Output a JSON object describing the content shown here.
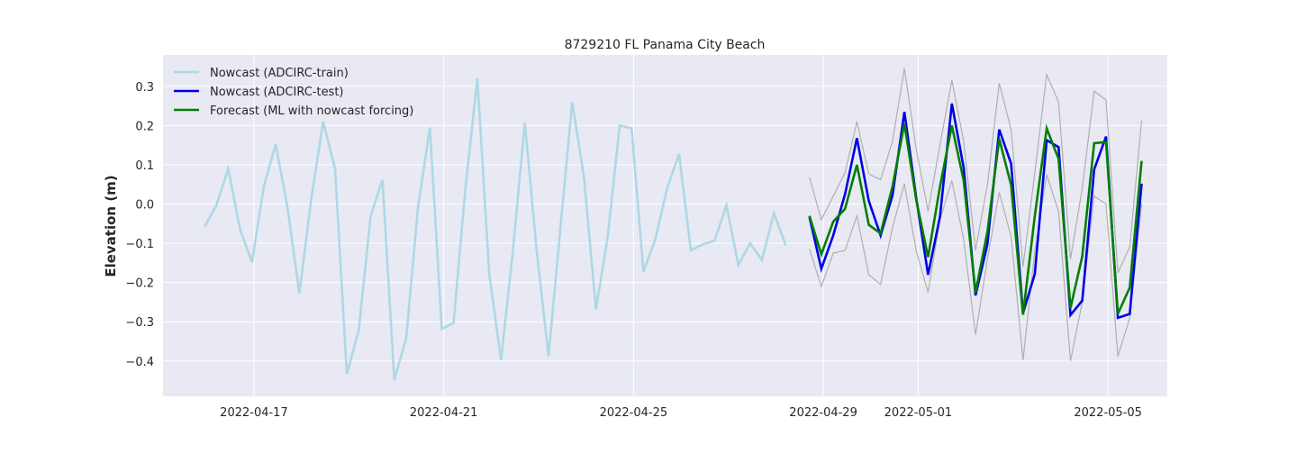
{
  "chart_data": {
    "type": "line",
    "title": "8729210 FL Panama City Beach",
    "xlabel": "",
    "ylabel": "Elevation (m)",
    "background": "#e8e9f2",
    "grid": true,
    "legend_position": "top-left",
    "xlim": [
      "2022-04-15 02:00",
      "2022-05-06 06:00"
    ],
    "ylim": [
      -0.49,
      0.38
    ],
    "x_ticks": [
      {
        "value": "2022-04-17",
        "label": "2022-04-17"
      },
      {
        "value": "2022-04-21",
        "label": "2022-04-21"
      },
      {
        "value": "2022-04-25",
        "label": "2022-04-25"
      },
      {
        "value": "2022-04-29",
        "label": "2022-04-29"
      },
      {
        "value": "2022-05-01",
        "label": "2022-05-01"
      },
      {
        "value": "2022-05-05",
        "label": "2022-05-05"
      }
    ],
    "y_ticks": [
      {
        "value": 0.3,
        "label": "0.3"
      },
      {
        "value": 0.2,
        "label": "0.2"
      },
      {
        "value": 0.1,
        "label": "0.1"
      },
      {
        "value": 0.0,
        "label": "0.0"
      },
      {
        "value": -0.1,
        "label": "−0.1"
      },
      {
        "value": -0.2,
        "label": "−0.2"
      },
      {
        "value": -0.3,
        "label": "−0.3"
      },
      {
        "value": -0.4,
        "label": "−0.4"
      }
    ],
    "series": [
      {
        "name": "Nowcast (ADCIRC-train)",
        "color": "#add8e6",
        "x": [
          "2022-04-15 23:00",
          "2022-04-16 05:00",
          "2022-04-16 11:00",
          "2022-04-16 17:00",
          "2022-04-16 23:00",
          "2022-04-17 05:00",
          "2022-04-17 11:00",
          "2022-04-17 17:00",
          "2022-04-17 23:00",
          "2022-04-18 05:00",
          "2022-04-18 11:00",
          "2022-04-18 17:00",
          "2022-04-18 23:00",
          "2022-04-19 05:00",
          "2022-04-19 11:00",
          "2022-04-19 17:00",
          "2022-04-19 23:00",
          "2022-04-20 05:00",
          "2022-04-20 11:00",
          "2022-04-20 17:00",
          "2022-04-20 23:00",
          "2022-04-21 05:00",
          "2022-04-21 11:00",
          "2022-04-21 17:00",
          "2022-04-21 23:00",
          "2022-04-22 05:00",
          "2022-04-22 11:00",
          "2022-04-22 17:00",
          "2022-04-22 23:00",
          "2022-04-23 05:00",
          "2022-04-23 11:00",
          "2022-04-23 17:00",
          "2022-04-23 23:00",
          "2022-04-24 05:00",
          "2022-04-24 11:00",
          "2022-04-24 17:00",
          "2022-04-24 23:00",
          "2022-04-25 05:00",
          "2022-04-25 11:00",
          "2022-04-25 17:00",
          "2022-04-25 23:00",
          "2022-04-26 05:00",
          "2022-04-26 11:00",
          "2022-04-26 17:00",
          "2022-04-26 23:00",
          "2022-04-27 05:00",
          "2022-04-27 11:00",
          "2022-04-27 17:00",
          "2022-04-27 23:00",
          "2022-04-28 05:00",
          "2022-04-28 11:00"
        ],
        "values": [
          -0.058,
          -0.003,
          0.09,
          -0.065,
          -0.148,
          0.045,
          0.153,
          -0.01,
          -0.228,
          0.013,
          0.21,
          0.09,
          -0.433,
          -0.322,
          -0.03,
          0.062,
          -0.448,
          -0.342,
          -0.008,
          0.195,
          -0.318,
          -0.303,
          0.042,
          0.32,
          -0.178,
          -0.398,
          -0.118,
          0.207,
          -0.118,
          -0.388,
          -0.06,
          0.26,
          0.066,
          -0.268,
          -0.082,
          0.2,
          0.193,
          -0.172,
          -0.09,
          0.04,
          0.128,
          -0.118,
          -0.103,
          -0.093,
          -0.003,
          -0.155,
          -0.1,
          -0.143,
          -0.023,
          -0.105,
          null
        ]
      },
      {
        "name": "Nowcast (ADCIRC-test)",
        "color": "#0000e6",
        "x": [
          "2022-04-28 17:00",
          "2022-04-28 23:00",
          "2022-04-29 05:00",
          "2022-04-29 11:00",
          "2022-04-29 17:00",
          "2022-04-29 23:00",
          "2022-04-30 05:00",
          "2022-04-30 11:00",
          "2022-04-30 17:00",
          "2022-04-30 23:00",
          "2022-05-01 05:00",
          "2022-05-01 11:00",
          "2022-05-01 17:00",
          "2022-05-01 23:00",
          "2022-05-02 05:00",
          "2022-05-02 11:00",
          "2022-05-02 17:00",
          "2022-05-02 23:00",
          "2022-05-03 05:00",
          "2022-05-03 11:00",
          "2022-05-03 17:00",
          "2022-05-03 23:00",
          "2022-05-04 05:00",
          "2022-05-04 11:00",
          "2022-05-04 17:00",
          "2022-05-04 23:00",
          "2022-05-05 05:00",
          "2022-05-05 11:00",
          "2022-05-05 17:00"
        ],
        "values": [
          -0.033,
          -0.165,
          -0.08,
          0.025,
          0.168,
          0.008,
          -0.08,
          0.022,
          0.235,
          0.015,
          -0.18,
          -0.032,
          0.256,
          0.093,
          -0.233,
          -0.102,
          0.19,
          0.103,
          -0.278,
          -0.178,
          0.163,
          0.145,
          -0.283,
          -0.246,
          0.088,
          0.172,
          -0.29,
          -0.28,
          0.052
        ]
      },
      {
        "name": "Forecast (ML with nowcast forcing)",
        "color": "#008000",
        "x": [
          "2022-04-28 17:00",
          "2022-04-28 23:00",
          "2022-04-29 05:00",
          "2022-04-29 11:00",
          "2022-04-29 17:00",
          "2022-04-29 23:00",
          "2022-04-30 05:00",
          "2022-04-30 11:00",
          "2022-04-30 17:00",
          "2022-04-30 23:00",
          "2022-05-01 05:00",
          "2022-05-01 11:00",
          "2022-05-01 17:00",
          "2022-05-01 23:00",
          "2022-05-02 05:00",
          "2022-05-02 11:00",
          "2022-05-02 17:00",
          "2022-05-02 23:00",
          "2022-05-03 05:00",
          "2022-05-03 11:00",
          "2022-05-03 17:00",
          "2022-05-03 23:00",
          "2022-05-04 05:00",
          "2022-05-04 11:00",
          "2022-05-04 17:00",
          "2022-05-04 23:00",
          "2022-05-05 05:00",
          "2022-05-05 11:00",
          "2022-05-05 17:00"
        ],
        "values": [
          -0.03,
          -0.128,
          -0.045,
          -0.012,
          0.1,
          -0.053,
          -0.075,
          0.045,
          0.205,
          0.01,
          -0.135,
          0.044,
          0.2,
          0.06,
          -0.225,
          -0.07,
          0.166,
          0.048,
          -0.282,
          -0.03,
          0.193,
          0.115,
          -0.265,
          -0.133,
          0.155,
          0.158,
          -0.28,
          -0.213,
          0.11
        ]
      },
      {
        "name": "",
        "color": "#b0b0b0",
        "band_upper": true,
        "x": [
          "2022-04-28 17:00",
          "2022-04-28 23:00",
          "2022-04-29 05:00",
          "2022-04-29 11:00",
          "2022-04-29 17:00",
          "2022-04-29 23:00",
          "2022-04-30 05:00",
          "2022-04-30 11:00",
          "2022-04-30 17:00",
          "2022-04-30 23:00",
          "2022-05-01 05:00",
          "2022-05-01 11:00",
          "2022-05-01 17:00",
          "2022-05-01 23:00",
          "2022-05-02 05:00",
          "2022-05-02 11:00",
          "2022-05-02 17:00",
          "2022-05-02 23:00",
          "2022-05-03 05:00",
          "2022-05-03 11:00",
          "2022-05-03 17:00",
          "2022-05-03 23:00",
          "2022-05-04 05:00",
          "2022-05-04 11:00",
          "2022-05-04 17:00",
          "2022-05-04 23:00",
          "2022-05-05 05:00",
          "2022-05-05 11:00",
          "2022-05-05 17:00"
        ],
        "values": [
          0.068,
          -0.04,
          0.02,
          0.08,
          0.21,
          0.077,
          0.062,
          0.16,
          0.346,
          0.14,
          -0.018,
          0.15,
          0.316,
          0.16,
          -0.118,
          0.05,
          0.308,
          0.19,
          -0.16,
          0.08,
          0.33,
          0.26,
          -0.14,
          0.04,
          0.288,
          0.265,
          -0.175,
          -0.11,
          0.213
        ]
      },
      {
        "name": "",
        "color": "#b0b0b0",
        "band_lower": true,
        "x": [
          "2022-04-28 17:00",
          "2022-04-28 23:00",
          "2022-04-29 05:00",
          "2022-04-29 11:00",
          "2022-04-29 17:00",
          "2022-04-29 23:00",
          "2022-04-30 05:00",
          "2022-04-30 11:00",
          "2022-04-30 17:00",
          "2022-04-30 23:00",
          "2022-05-01 05:00",
          "2022-05-01 11:00",
          "2022-05-01 17:00",
          "2022-05-01 23:00",
          "2022-05-02 05:00",
          "2022-05-02 11:00",
          "2022-05-02 17:00",
          "2022-05-02 23:00",
          "2022-05-03 05:00",
          "2022-05-03 11:00",
          "2022-05-03 17:00",
          "2022-05-03 23:00",
          "2022-05-04 05:00",
          "2022-05-04 11:00",
          "2022-05-04 17:00",
          "2022-05-04 23:00",
          "2022-05-05 05:00",
          "2022-05-05 11:00",
          "2022-05-05 17:00"
        ],
        "values": [
          -0.115,
          -0.21,
          -0.125,
          -0.118,
          -0.03,
          -0.18,
          -0.205,
          -0.06,
          0.052,
          -0.12,
          -0.225,
          -0.04,
          0.06,
          -0.09,
          -0.333,
          -0.14,
          0.03,
          -0.083,
          -0.398,
          -0.12,
          0.075,
          -0.02,
          -0.4,
          -0.25,
          0.02,
          0.0,
          -0.388,
          -0.29,
          0.0
        ]
      }
    ]
  }
}
